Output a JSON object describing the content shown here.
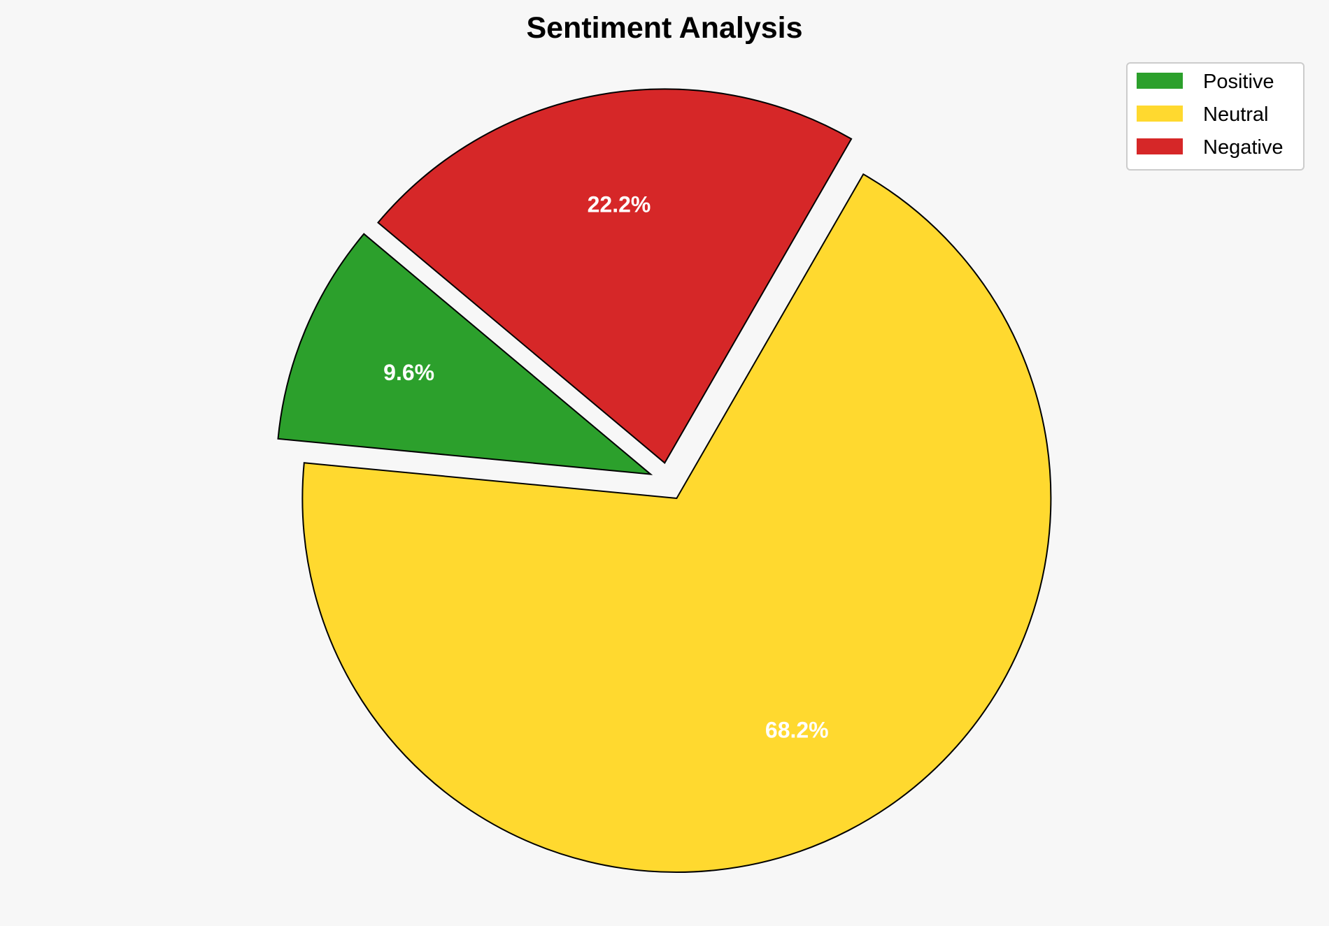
{
  "chart_data": {
    "type": "pie",
    "title": "Sentiment Analysis",
    "categories": [
      "Positive",
      "Neutral",
      "Negative"
    ],
    "values": [
      9.6,
      68.2,
      22.2
    ],
    "labels": [
      "9.6%",
      "68.2%",
      "22.2%"
    ],
    "colors": [
      "#2ca02c",
      "#ffd92f",
      "#d62728"
    ],
    "start_angle_deg": 140,
    "direction": "counterclockwise",
    "exploded": true,
    "legend_position": "top-right"
  }
}
